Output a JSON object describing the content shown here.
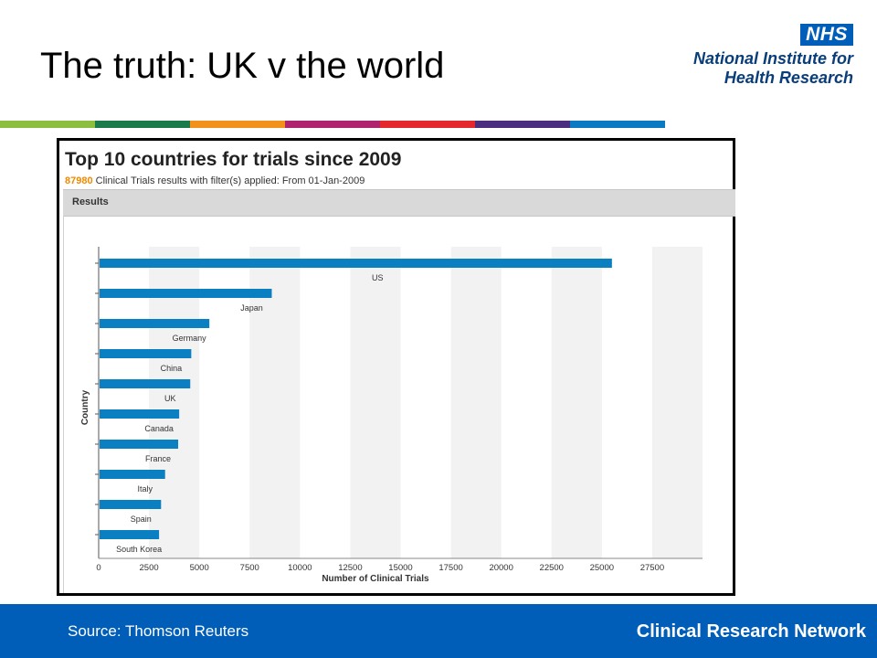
{
  "slide": {
    "title": "The truth: UK v the world",
    "logo": {
      "badge": "NHS",
      "name": "National Institute for\nHealth Research"
    },
    "stripe_colors": [
      "#8cbf3f",
      "#1b7a4a",
      "#f2921a",
      "#b0236e",
      "#e3272c",
      "#4b2d7f",
      "#0a7ac2"
    ],
    "footer": {
      "source": "Source: Thomson Reuters",
      "network": "Clinical Research Network"
    },
    "brand_color": "#005eb8"
  },
  "screenshot": {
    "title": "Top 10 countries for trials since 2009",
    "count": "87980",
    "subtitle": "Clinical Trials results with filter(s) applied: From 01-Jan-2009",
    "results_label": "Results"
  },
  "chart_data": {
    "type": "bar",
    "orientation": "horizontal",
    "categories": [
      "US",
      "Japan",
      "Germany",
      "China",
      "UK",
      "Canada",
      "France",
      "Italy",
      "Spain",
      "South Korea"
    ],
    "values": [
      25500,
      8600,
      5500,
      4600,
      4550,
      4000,
      3950,
      3300,
      3100,
      3000
    ],
    "xlabel": "Number of Clinical Trials",
    "ylabel": "Country",
    "xticks": [
      0,
      2500,
      5000,
      7500,
      10000,
      12500,
      15000,
      17500,
      20000,
      22500,
      25000,
      27500
    ],
    "xlim": [
      0,
      30000
    ],
    "bar_color": "#0a7fc2",
    "grid": "alternating vertical bands"
  }
}
